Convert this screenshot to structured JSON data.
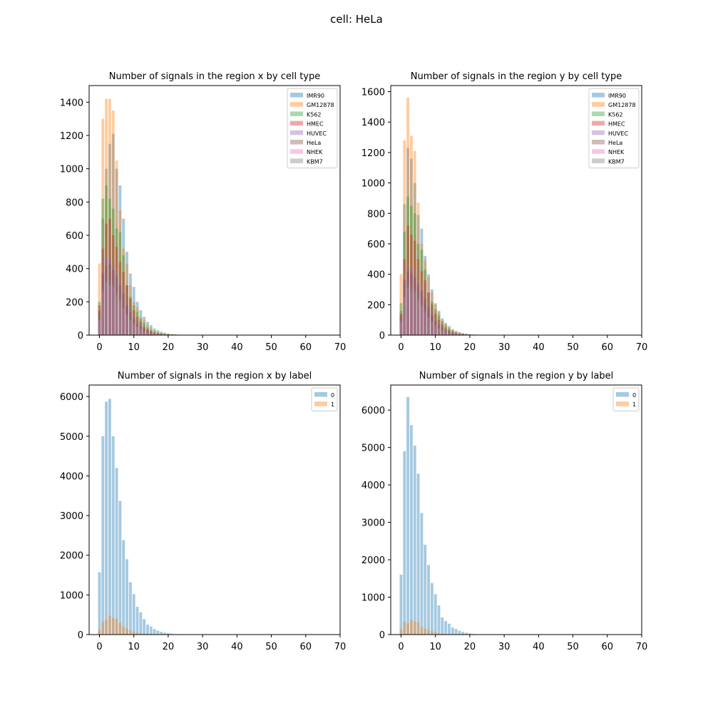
{
  "figure": {
    "title": "cell: HeLa"
  },
  "colors": {
    "IMR90": "#1f77b4",
    "GM12878": "#ff7f0e",
    "K562": "#2ca02c",
    "HMEC": "#d62728",
    "HUVEC": "#9467bd",
    "HeLa": "#8c564b",
    "NHEK": "#e377c2",
    "KBM7": "#7f7f7f",
    "0": "#1f77b4",
    "1": "#ff7f0e"
  },
  "chart_data": [
    {
      "type": "bar",
      "title": "Number of signals in the region x by cell type",
      "xlim": [
        -3,
        70
      ],
      "ylim": [
        0,
        1500
      ],
      "xticks": [
        0,
        10,
        20,
        30,
        40,
        50,
        60,
        70
      ],
      "yticks": [
        0,
        200,
        400,
        600,
        800,
        1000,
        1200,
        1400
      ],
      "legend": "top-right",
      "x": [
        0,
        1,
        2,
        3,
        4,
        5,
        6,
        7,
        8,
        9,
        10,
        11,
        12,
        13,
        14,
        15,
        16,
        17,
        18,
        19,
        20,
        21,
        22,
        23,
        24,
        25,
        26
      ],
      "series": [
        {
          "name": "IMR90",
          "values": [
            150,
            700,
            1000,
            1150,
            1210,
            1000,
            900,
            700,
            500,
            370,
            290,
            200,
            150,
            110,
            80,
            60,
            40,
            30,
            20,
            15,
            10,
            7,
            5,
            3,
            2,
            1,
            1
          ]
        },
        {
          "name": "GM12878",
          "values": [
            430,
            1300,
            1420,
            1420,
            1350,
            1050,
            750,
            520,
            430,
            300,
            200,
            170,
            110,
            90,
            60,
            45,
            30,
            20,
            15,
            10,
            8,
            5,
            3,
            2,
            1,
            1,
            1
          ]
        },
        {
          "name": "K562",
          "values": [
            200,
            820,
            900,
            820,
            760,
            640,
            620,
            480,
            300,
            230,
            180,
            140,
            100,
            70,
            45,
            30,
            20,
            15,
            10,
            6,
            4,
            3,
            2,
            1,
            1,
            0,
            0
          ]
        },
        {
          "name": "HMEC",
          "values": [
            180,
            520,
            670,
            700,
            600,
            530,
            440,
            380,
            300,
            220,
            150,
            110,
            80,
            50,
            35,
            25,
            15,
            10,
            7,
            5,
            3,
            2,
            1,
            1,
            0,
            0,
            0
          ]
        },
        {
          "name": "HUVEC",
          "values": [
            120,
            390,
            470,
            460,
            420,
            380,
            320,
            270,
            200,
            160,
            110,
            80,
            60,
            40,
            25,
            18,
            12,
            8,
            5,
            3,
            2,
            1,
            1,
            0,
            0,
            0,
            0
          ]
        },
        {
          "name": "HeLa",
          "values": [
            140,
            370,
            420,
            430,
            390,
            350,
            300,
            250,
            180,
            140,
            100,
            70,
            50,
            35,
            22,
            15,
            10,
            6,
            4,
            2,
            1,
            1,
            0,
            0,
            0,
            0,
            0
          ]
        },
        {
          "name": "NHEK",
          "values": [
            90,
            260,
            320,
            300,
            290,
            240,
            200,
            160,
            120,
            90,
            70,
            50,
            35,
            25,
            15,
            10,
            7,
            4,
            3,
            2,
            1,
            0,
            0,
            0,
            0,
            0,
            0
          ]
        },
        {
          "name": "KBM7",
          "values": [
            100,
            280,
            350,
            330,
            310,
            260,
            220,
            170,
            130,
            100,
            75,
            55,
            38,
            26,
            16,
            11,
            7,
            4,
            3,
            2,
            1,
            0,
            0,
            0,
            0,
            0,
            0
          ]
        }
      ]
    },
    {
      "type": "bar",
      "title": "Number of signals in the region y by cell type",
      "xlim": [
        -3,
        70
      ],
      "ylim": [
        0,
        1640
      ],
      "xticks": [
        0,
        10,
        20,
        30,
        40,
        50,
        60,
        70
      ],
      "yticks": [
        0,
        200,
        400,
        600,
        800,
        1000,
        1200,
        1400,
        1600
      ],
      "legend": "top-right",
      "x": [
        0,
        1,
        2,
        3,
        4,
        5,
        6,
        7,
        8,
        9,
        10,
        11,
        12,
        13,
        14,
        15,
        16,
        17,
        18,
        19,
        20,
        21,
        22,
        23,
        24
      ],
      "series": [
        {
          "name": "IMR90",
          "values": [
            160,
            860,
            1230,
            1160,
            1000,
            790,
            700,
            520,
            400,
            300,
            210,
            160,
            110,
            80,
            60,
            40,
            28,
            20,
            14,
            10,
            7,
            5,
            3,
            2,
            1
          ]
        },
        {
          "name": "GM12878",
          "values": [
            400,
            1280,
            1560,
            1310,
            1210,
            870,
            600,
            490,
            380,
            280,
            200,
            150,
            100,
            75,
            50,
            35,
            25,
            18,
            12,
            8,
            5,
            3,
            2,
            1,
            1
          ]
        },
        {
          "name": "K562",
          "values": [
            210,
            680,
            910,
            850,
            800,
            600,
            560,
            430,
            280,
            220,
            170,
            130,
            90,
            60,
            40,
            28,
            18,
            12,
            8,
            5,
            3,
            2,
            1,
            1,
            0
          ]
        },
        {
          "name": "HMEC",
          "values": [
            140,
            500,
            720,
            660,
            620,
            500,
            420,
            360,
            280,
            200,
            140,
            100,
            70,
            45,
            30,
            20,
            13,
            8,
            5,
            3,
            2,
            1,
            1,
            0,
            0
          ]
        },
        {
          "name": "HUVEC",
          "values": [
            110,
            380,
            450,
            440,
            400,
            350,
            300,
            250,
            190,
            150,
            100,
            75,
            55,
            35,
            22,
            15,
            10,
            6,
            4,
            2,
            1,
            1,
            0,
            0,
            0
          ]
        },
        {
          "name": "HeLa",
          "values": [
            130,
            360,
            420,
            410,
            380,
            330,
            290,
            240,
            180,
            130,
            95,
            65,
            45,
            30,
            20,
            13,
            8,
            5,
            3,
            2,
            1,
            0,
            0,
            0,
            0
          ]
        },
        {
          "name": "NHEK",
          "values": [
            85,
            250,
            310,
            290,
            280,
            230,
            190,
            150,
            115,
            85,
            65,
            45,
            32,
            22,
            14,
            9,
            6,
            4,
            2,
            1,
            1,
            0,
            0,
            0,
            0
          ]
        },
        {
          "name": "KBM7",
          "values": [
            95,
            270,
            340,
            320,
            300,
            250,
            210,
            160,
            125,
            95,
            70,
            50,
            35,
            24,
            15,
            10,
            6,
            4,
            2,
            1,
            1,
            0,
            0,
            0,
            0
          ]
        }
      ]
    },
    {
      "type": "bar",
      "title": "Number of signals in the region x by label",
      "xlim": [
        -3,
        70
      ],
      "ylim": [
        0,
        6290
      ],
      "xticks": [
        0,
        10,
        20,
        30,
        40,
        50,
        60,
        70
      ],
      "yticks": [
        0,
        1000,
        2000,
        3000,
        4000,
        5000,
        6000
      ],
      "legend": "top-right",
      "x": [
        0,
        1,
        2,
        3,
        4,
        5,
        6,
        7,
        8,
        9,
        10,
        11,
        12,
        13,
        14,
        15,
        16,
        17,
        18,
        19,
        20,
        21,
        22,
        23,
        24
      ],
      "series": [
        {
          "name": "0",
          "values": [
            1570,
            5000,
            5870,
            5940,
            5000,
            4200,
            3370,
            2380,
            1900,
            1320,
            1020,
            700,
            560,
            390,
            250,
            200,
            140,
            100,
            70,
            50,
            35,
            20,
            12,
            8,
            5
          ]
        },
        {
          "name": "1",
          "values": [
            120,
            330,
            380,
            480,
            420,
            400,
            300,
            200,
            160,
            110,
            80,
            55,
            40,
            28,
            18,
            12,
            8,
            5,
            3,
            2,
            1,
            1,
            0,
            0,
            0
          ]
        }
      ]
    },
    {
      "type": "bar",
      "title": "Number of signals in the region y by label",
      "xlim": [
        -3,
        70
      ],
      "ylim": [
        0,
        6670
      ],
      "xticks": [
        0,
        10,
        20,
        30,
        40,
        50,
        60,
        70
      ],
      "yticks": [
        0,
        1000,
        2000,
        3000,
        4000,
        5000,
        6000
      ],
      "legend": "top-right",
      "x": [
        0,
        1,
        2,
        3,
        4,
        5,
        6,
        7,
        8,
        9,
        10,
        11,
        12,
        13,
        14,
        15,
        16,
        17,
        18,
        19,
        20,
        21
      ],
      "series": [
        {
          "name": "0",
          "values": [
            1600,
            4900,
            6350,
            5600,
            5050,
            4300,
            3250,
            2400,
            1860,
            1380,
            1080,
            780,
            460,
            360,
            290,
            190,
            150,
            100,
            70,
            50,
            30,
            15
          ]
        },
        {
          "name": "1",
          "values": [
            150,
            350,
            300,
            400,
            350,
            330,
            200,
            160,
            120,
            90,
            60,
            40,
            25,
            15,
            10,
            6,
            4,
            2,
            1,
            1,
            0,
            0
          ]
        }
      ]
    }
  ]
}
